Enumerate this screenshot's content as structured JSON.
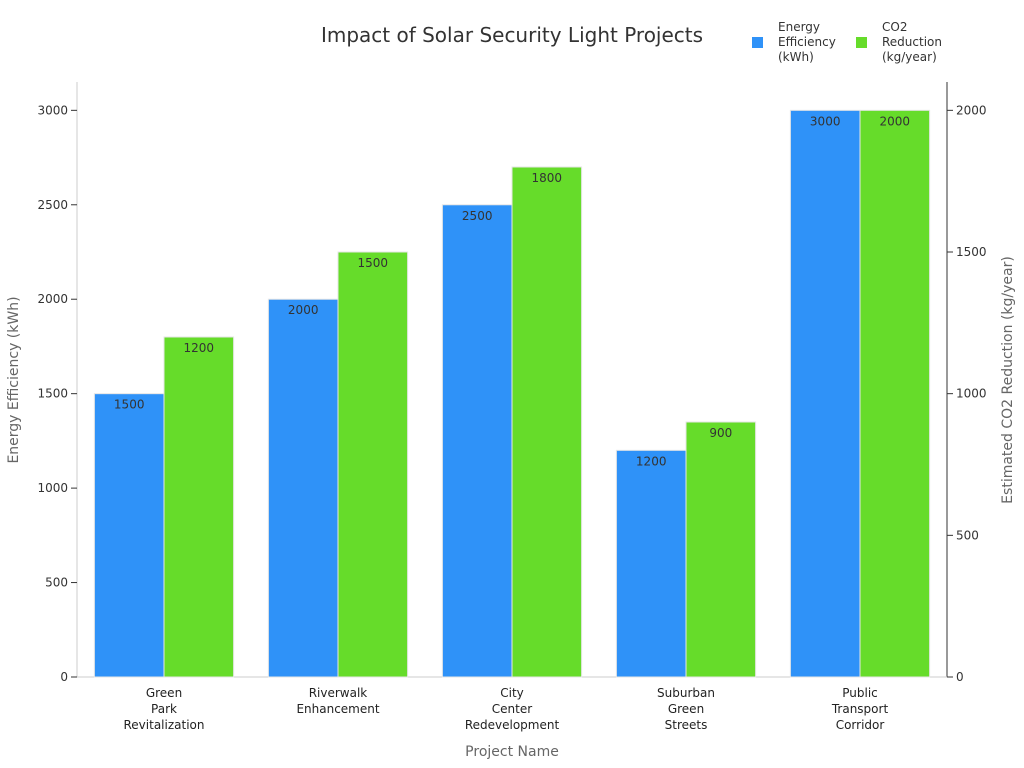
{
  "chart_data": {
    "type": "bar",
    "title": "Impact of Solar Security Light Projects",
    "xlabel": "Project Name",
    "ylabel_left": "Energy Efficiency (kWh)",
    "ylabel_right": "Estimated CO2 Reduction (kg/year)",
    "categories": [
      [
        "Green",
        "Park",
        "Revitalization"
      ],
      [
        "Riverwalk",
        "Enhancement"
      ],
      [
        "City",
        "Center",
        "Redevelopment"
      ],
      [
        "Suburban",
        "Green",
        "Streets"
      ],
      [
        "Public",
        "Transport",
        "Corridor"
      ]
    ],
    "series": [
      {
        "name": [
          "Energy",
          "Efficiency",
          "(kWh)"
        ],
        "axis": "left",
        "values": [
          1500,
          2000,
          2500,
          1200,
          3000
        ],
        "color": "#2f92f8"
      },
      {
        "name": [
          "CO2",
          "Reduction",
          "(kg/year)"
        ],
        "axis": "right",
        "values": [
          1200,
          1500,
          1800,
          900,
          2000
        ],
        "color": "#66dc2a"
      }
    ],
    "ylim_left": [
      0,
      3150
    ],
    "ylim_right": [
      0,
      2100
    ],
    "yticks_left": [
      0,
      500,
      1000,
      1500,
      2000,
      2500,
      3000
    ],
    "yticks_right": [
      0,
      500,
      1000,
      1500,
      2000
    ],
    "grid": false,
    "legend_position": "top-right"
  }
}
